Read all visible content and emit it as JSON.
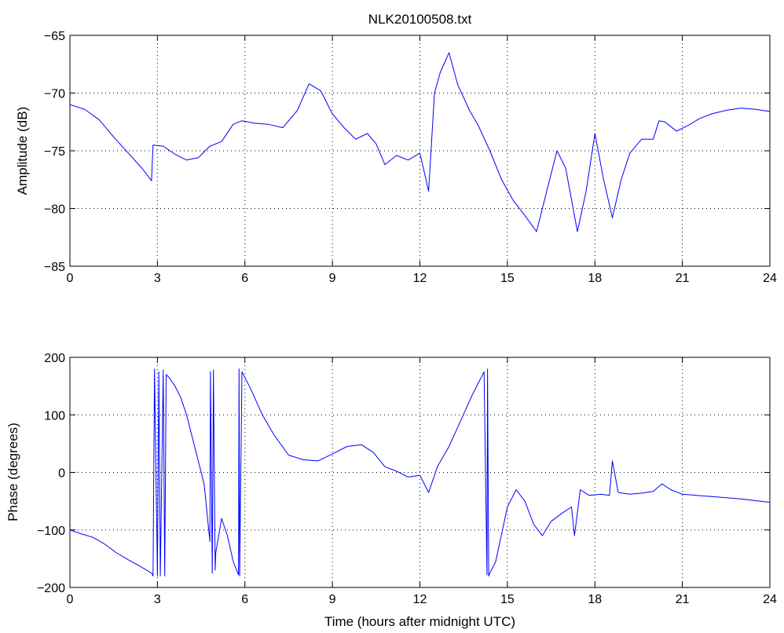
{
  "colors": {
    "series": "#0000ff",
    "axes": "#000000",
    "background": "#ffffff"
  },
  "chart_data": [
    {
      "type": "line",
      "title": "NLK20100508.txt",
      "xlabel": "",
      "ylabel": "Amplitude (dB)",
      "xlim": [
        0,
        24
      ],
      "ylim": [
        -85,
        -65
      ],
      "xticks": [
        0,
        3,
        6,
        9,
        12,
        15,
        18,
        21,
        24
      ],
      "yticks": [
        -85,
        -80,
        -75,
        -70,
        -65
      ],
      "xtick_labels": [
        "0",
        "3",
        "6",
        "9",
        "12",
        "15",
        "18",
        "21",
        "24"
      ],
      "ytick_labels": [
        "−85",
        "−80",
        "−75",
        "−70",
        "−65"
      ],
      "grid": true,
      "series": [
        {
          "x": [
            0,
            0.5,
            1,
            1.5,
            2,
            2.5,
            2.8,
            2.85,
            3.2,
            3.6,
            4.0,
            4.4,
            4.8,
            5.2,
            5.6,
            5.9,
            6.3,
            6.8,
            7.3,
            7.8,
            8.2,
            8.6,
            9.0,
            9.4,
            9.8,
            10.2,
            10.5,
            10.8,
            11.2,
            11.6,
            12.0,
            12.3,
            12.5,
            12.7,
            13.0,
            13.3,
            13.7,
            14.0,
            14.4,
            14.8,
            15.2,
            15.6,
            16.0,
            16.3,
            16.7,
            17.0,
            17.4,
            17.7,
            18.0,
            18.3,
            18.6,
            18.9,
            19.2,
            19.6,
            20.0,
            20.2,
            20.4,
            20.8,
            21.2,
            21.6,
            22.0,
            22.5,
            23.0,
            23.5,
            24.0
          ],
          "values": [
            -71,
            -71.4,
            -72.3,
            -73.8,
            -75.2,
            -76.6,
            -77.6,
            -74.5,
            -74.6,
            -75.3,
            -75.8,
            -75.6,
            -74.6,
            -74.2,
            -72.7,
            -72.4,
            -72.6,
            -72.7,
            -73.0,
            -71.5,
            -69.2,
            -69.8,
            -71.8,
            -73.0,
            -74.0,
            -73.5,
            -74.4,
            -76.2,
            -75.4,
            -75.8,
            -75.2,
            -78.5,
            -70.0,
            -68.2,
            -66.5,
            -69.3,
            -71.5,
            -72.8,
            -75.0,
            -77.5,
            -79.3,
            -80.6,
            -82.0,
            -79.0,
            -75.0,
            -76.5,
            -82.0,
            -78.5,
            -73.5,
            -77.5,
            -80.8,
            -77.5,
            -75.2,
            -74.0,
            -74.0,
            -72.4,
            -72.5,
            -73.3,
            -72.8,
            -72.2,
            -71.8,
            -71.5,
            -71.3,
            -71.4,
            -71.6
          ]
        }
      ]
    },
    {
      "type": "line",
      "title": "",
      "xlabel": "Time (hours after midnight UTC)",
      "ylabel": "Phase (degrees)",
      "xlim": [
        0,
        24
      ],
      "ylim": [
        -200,
        200
      ],
      "xticks": [
        0,
        3,
        6,
        9,
        12,
        15,
        18,
        21,
        24
      ],
      "yticks": [
        -200,
        -100,
        0,
        100,
        200
      ],
      "xtick_labels": [
        "0",
        "3",
        "6",
        "9",
        "12",
        "15",
        "18",
        "21",
        "24"
      ],
      "ytick_labels": [
        "−200",
        "−100",
        "0",
        "100",
        "200"
      ],
      "grid": true,
      "series": [
        {
          "x": [
            0,
            0.4,
            0.8,
            1.2,
            1.6,
            2.0,
            2.4,
            2.8,
            2.85,
            2.9,
            3.0,
            3.05,
            3.1,
            3.2,
            3.25,
            3.3,
            3.4,
            3.6,
            3.8,
            4.0,
            4.2,
            4.4,
            4.6,
            4.8,
            4.82,
            4.88,
            4.92,
            4.98,
            5.0,
            5.2,
            5.4,
            5.6,
            5.78,
            5.8,
            5.82,
            5.9,
            6.2,
            6.6,
            7.0,
            7.5,
            8.0,
            8.5,
            9.0,
            9.5,
            10.0,
            10.4,
            10.8,
            11.2,
            11.6,
            12.0,
            12.3,
            12.6,
            13.0,
            13.4,
            13.8,
            14.2,
            14.3,
            14.32,
            14.36,
            14.4,
            14.6,
            15.0,
            15.3,
            15.6,
            15.9,
            16.2,
            16.5,
            16.9,
            17.2,
            17.3,
            17.5,
            17.8,
            18.2,
            18.5,
            18.6,
            18.8,
            19.2,
            19.6,
            20.0,
            20.3,
            20.6,
            21.0,
            22.0,
            23.0,
            24.0
          ],
          "values": [
            -100,
            -107,
            -113,
            -125,
            -140,
            -152,
            -163,
            -175,
            -180,
            180,
            -180,
            175,
            -180,
            178,
            -180,
            170,
            165,
            150,
            130,
            100,
            60,
            20,
            -20,
            -120,
            175,
            -175,
            178,
            -170,
            -140,
            -80,
            -110,
            -155,
            -178,
            180,
            -180,
            175,
            145,
            100,
            65,
            30,
            22,
            20,
            32,
            45,
            48,
            35,
            10,
            2,
            -8,
            -5,
            -35,
            10,
            45,
            90,
            135,
            175,
            -178,
            180,
            -180,
            -175,
            -155,
            -60,
            -30,
            -50,
            -90,
            -110,
            -85,
            -70,
            -60,
            -110,
            -30,
            -40,
            -38,
            -40,
            20,
            -35,
            -38,
            -36,
            -33,
            -20,
            -30,
            -38,
            -42,
            -46,
            -52
          ]
        }
      ]
    }
  ]
}
